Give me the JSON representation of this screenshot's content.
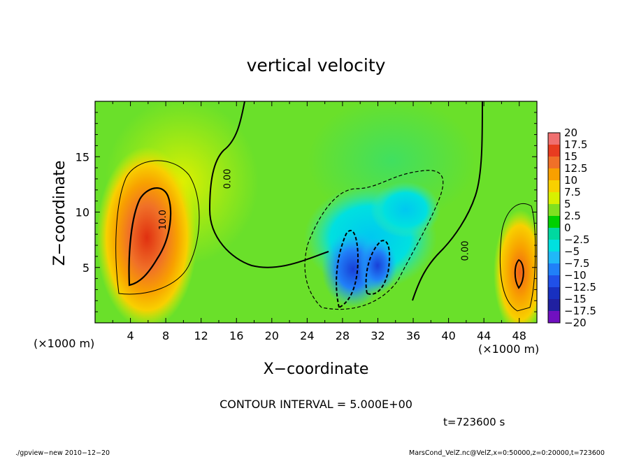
{
  "chart_data": {
    "type": "heatmap",
    "title": "vertical velocity",
    "xlabel": "X−coordinate",
    "ylabel": "Z−coordinate",
    "x_unit_left": "(×1000 m)",
    "x_unit_right": "(×1000 m)",
    "x_ticks": [
      4,
      8,
      12,
      16,
      20,
      24,
      28,
      32,
      36,
      40,
      44,
      48
    ],
    "y_ticks": [
      5,
      10,
      15
    ],
    "xlim": [
      0,
      50
    ],
    "ylim": [
      0,
      20
    ],
    "colorbar": {
      "labels": [
        "20",
        "17.5",
        "15",
        "12.5",
        "10",
        "7.5",
        "5",
        "2.5",
        "0",
        "−2.5",
        "−5",
        "−7.5",
        "−10",
        "−12.5",
        "−15",
        "−17.5",
        "−20"
      ],
      "colors": [
        "#f4a0a0",
        "#f07070",
        "#e83c20",
        "#f07028",
        "#f8a000",
        "#f8d000",
        "#d8f000",
        "#80e020",
        "#00d000",
        "#00d8a0",
        "#00e0e0",
        "#20b8f8",
        "#2080f8",
        "#2050e8",
        "#1830c0",
        "#2020a0",
        "#7010c0"
      ]
    },
    "contour_labels": [
      {
        "text": "10.0",
        "x": 8.0,
        "z": 9.3
      },
      {
        "text": "0.00",
        "x": 15.3,
        "z": 13.0
      },
      {
        "text": "0.00",
        "x": 42.2,
        "z": 6.5
      }
    ],
    "features": [
      {
        "kind": "max",
        "x": 6,
        "z": 8.3,
        "value": 17.5
      },
      {
        "kind": "max",
        "x": 48,
        "z": 4.6,
        "value": 12.5
      },
      {
        "kind": "min",
        "x": 29.5,
        "z": 5.0,
        "value": -12.5
      }
    ]
  },
  "contour_interval": "CONTOUR INTERVAL = 5.000E+00",
  "time_label": "t=723600 s",
  "footer_left": "./gpview−new  2010−12−20",
  "footer_right": "MarsCond_VelZ.nc@VelZ,x=0:50000,z=0:20000,t=723600"
}
